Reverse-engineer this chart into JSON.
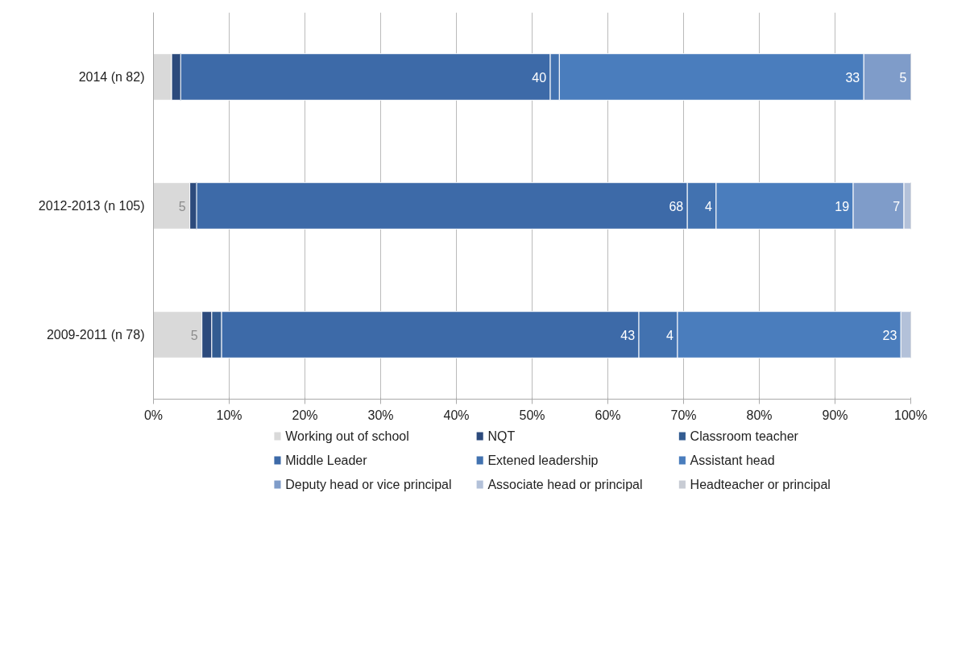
{
  "chart_data": {
    "type": "bar",
    "orientation": "horizontal",
    "stacked": true,
    "categories": [
      "2014 (n 82)",
      "2012-2013 (n 105)",
      "2009-2011 (n 78)"
    ],
    "series": [
      {
        "name": "Working out of school",
        "color": "#d9d9d9",
        "values": [
          2.4,
          4.8,
          6.4
        ]
      },
      {
        "name": "NQT",
        "color": "#2c4a7c",
        "values": [
          1.2,
          0.9,
          1.3
        ]
      },
      {
        "name": "Classroom teacher",
        "color": "#335c91",
        "values": [
          0,
          0,
          1.3
        ]
      },
      {
        "name": "Middle Leader",
        "color": "#3d6aa8",
        "values": [
          48.8,
          64.8,
          55.1
        ]
      },
      {
        "name": "Extened leadership",
        "color": "#4272b0",
        "values": [
          1.2,
          3.8,
          5.1
        ]
      },
      {
        "name": "Assistant head",
        "color": "#4a7dbd",
        "values": [
          40.2,
          18.1,
          29.5
        ]
      },
      {
        "name": "Deputy head or vice principal",
        "color": "#7f9cc9",
        "values": [
          6.2,
          6.7,
          0
        ]
      },
      {
        "name": "Associate head or principal",
        "color": "#b3c1d9",
        "values": [
          0,
          0.9,
          1.3
        ]
      },
      {
        "name": "Headteacher or principal",
        "color": "#c8ccd4",
        "values": [
          0,
          0,
          0
        ]
      }
    ],
    "annotations": [
      {
        "text": "40",
        "x": 52.4,
        "y": "2014 (n 82)"
      },
      {
        "text": "33",
        "x": 93.8,
        "y": "2014 (n 82)"
      },
      {
        "text": "5",
        "x": 100,
        "y": "2014 (n 82)"
      },
      {
        "text": "5",
        "x": 4.8,
        "y": "2012-2013 (n 105)"
      },
      {
        "text": "68",
        "x": 70.5,
        "y": "2012-2013 (n 105)"
      },
      {
        "text": "4",
        "x": 74.3,
        "y": "2012-2013 (n 105)"
      },
      {
        "text": "19",
        "x": 92.4,
        "y": "2012-2013 (n 105)"
      },
      {
        "text": "7",
        "x": 99.1,
        "y": "2012-2013 (n 105)"
      },
      {
        "text": "5",
        "x": 6.4,
        "y": "2009-2011 (n 78)"
      },
      {
        "text": "43",
        "x": 64.1,
        "y": "2009-2011 (n 78)"
      },
      {
        "text": "4",
        "x": 69.2,
        "y": "2009-2011 (n 78)"
      },
      {
        "text": "23",
        "x": 98.7,
        "y": "2009-2011 (n 78)"
      }
    ],
    "xlim": [
      0,
      100
    ],
    "xticks": [
      {
        "value": 0,
        "label": "0%"
      },
      {
        "value": 10,
        "label": "10%"
      },
      {
        "value": 20,
        "label": "20%"
      },
      {
        "value": 30,
        "label": "30%"
      },
      {
        "value": 40,
        "label": "40%"
      },
      {
        "value": 50,
        "label": "50%"
      },
      {
        "value": 60,
        "label": "60%"
      },
      {
        "value": 70,
        "label": "70%"
      },
      {
        "value": 80,
        "label": "80%"
      },
      {
        "value": 90,
        "label": "90%"
      },
      {
        "value": 100,
        "label": "100%"
      }
    ],
    "grid": "x",
    "legend": "bottom"
  }
}
